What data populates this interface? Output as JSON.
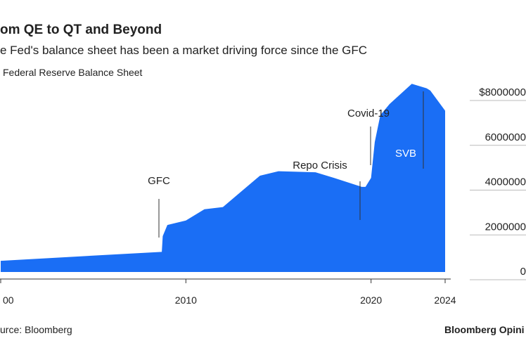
{
  "chart_data": {
    "type": "area",
    "title": "om QE to QT and Beyond",
    "subtitle": "e Fed's balance sheet has been a market driving force since the GFC",
    "source": "urce: Bloomberg",
    "brand": "Bloomberg Opini",
    "series": [
      {
        "name": "Federal Reserve Balance Sheet",
        "color": "#1a6ef5",
        "x": [
          2000,
          2008.7,
          2008.75,
          2009,
          2010,
          2011,
          2012,
          2013,
          2014,
          2015,
          2017,
          2018,
          2019.5,
          2019.7,
          2020,
          2020.2,
          2020.5,
          2021,
          2022.2,
          2023,
          2023.2,
          2024
        ],
        "values": [
          500000,
          900000,
          1600000,
          2100000,
          2300000,
          2800000,
          2900000,
          3600000,
          4300000,
          4500000,
          4450000,
          4200000,
          3800000,
          3800000,
          4200000,
          5800000,
          7000000,
          7500000,
          8400000,
          8200000,
          8100000,
          7200000
        ]
      }
    ],
    "annotations": [
      "GFC",
      "Repo Crisis",
      "Covid-19",
      "SVB"
    ],
    "xlim": [
      2000,
      2024
    ],
    "xticks": [
      {
        "value": 2000,
        "label": "00"
      },
      2010,
      2020,
      2024
    ],
    "ylim": [
      0,
      8000000
    ],
    "yticks": [
      0,
      2000000,
      4000000,
      6000000,
      {
        "value": 8000000,
        "label": "$8000000"
      }
    ],
    "grid": true
  }
}
